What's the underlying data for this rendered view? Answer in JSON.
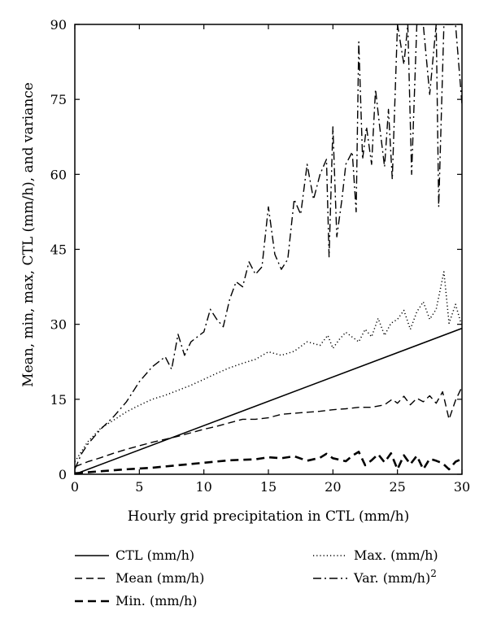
{
  "chart_data": {
    "type": "line",
    "xlabel": "Hourly grid precipitation in CTL (mm/h)",
    "ylabel": "Mean, min, max, CTL (mm/h), and variance",
    "xlim": [
      0,
      30
    ],
    "ylim": [
      0,
      90
    ],
    "xticks": [
      0,
      5,
      10,
      15,
      20,
      25,
      30
    ],
    "yticks": [
      0,
      15,
      30,
      45,
      60,
      75,
      90
    ],
    "grid": false,
    "legend_placement": "below",
    "series": [
      {
        "name": "CTL (mm/h)",
        "style": "solid",
        "points": [
          [
            0,
            0
          ],
          [
            30,
            29.2
          ]
        ]
      },
      {
        "name": "Mean (mm/h)",
        "style": "dashed",
        "points": [
          [
            0,
            1.5
          ],
          [
            1,
            2.5
          ],
          [
            2,
            3.3
          ],
          [
            3,
            4.2
          ],
          [
            4,
            5.0
          ],
          [
            5,
            5.7
          ],
          [
            6,
            6.4
          ],
          [
            7,
            7.0
          ],
          [
            8,
            7.6
          ],
          [
            9,
            8.3
          ],
          [
            10,
            9.0
          ],
          [
            11,
            9.6
          ],
          [
            12,
            10.3
          ],
          [
            13,
            11.0
          ],
          [
            14,
            11.0
          ],
          [
            15,
            11.3
          ],
          [
            16,
            12.0
          ],
          [
            17,
            12.2
          ],
          [
            18,
            12.4
          ],
          [
            19,
            12.6
          ],
          [
            20,
            12.9
          ],
          [
            21,
            13.1
          ],
          [
            22,
            13.4
          ],
          [
            23,
            13.4
          ],
          [
            24,
            13.9
          ],
          [
            24.6,
            15.0
          ],
          [
            25,
            14.2
          ],
          [
            25.5,
            15.6
          ],
          [
            26,
            13.9
          ],
          [
            26.5,
            15.2
          ],
          [
            27,
            14.5
          ],
          [
            27.5,
            15.7
          ],
          [
            28,
            14.2
          ],
          [
            28.5,
            16.5
          ],
          [
            29,
            11.0
          ],
          [
            29.5,
            14.8
          ],
          [
            30,
            17.5
          ]
        ]
      },
      {
        "name": "Min. (mm/h)",
        "style": "thick-dashed",
        "points": [
          [
            0,
            0.2
          ],
          [
            2,
            0.6
          ],
          [
            4,
            1.0
          ],
          [
            6,
            1.3
          ],
          [
            8,
            1.8
          ],
          [
            10,
            2.3
          ],
          [
            12,
            2.8
          ],
          [
            14,
            3.0
          ],
          [
            15,
            3.4
          ],
          [
            16,
            3.2
          ],
          [
            17,
            3.6
          ],
          [
            18,
            2.7
          ],
          [
            19,
            3.3
          ],
          [
            19.5,
            4.1
          ],
          [
            20,
            3.2
          ],
          [
            21,
            2.6
          ],
          [
            21.5,
            3.7
          ],
          [
            22,
            4.5
          ],
          [
            22.5,
            1.8
          ],
          [
            23,
            2.8
          ],
          [
            23.5,
            4.0
          ],
          [
            24,
            2.4
          ],
          [
            24.5,
            4.2
          ],
          [
            25,
            1.0
          ],
          [
            25.5,
            3.8
          ],
          [
            26,
            2.0
          ],
          [
            26.5,
            3.7
          ],
          [
            27,
            1.0
          ],
          [
            27.5,
            3.1
          ],
          [
            28,
            2.7
          ],
          [
            28.5,
            2.2
          ],
          [
            29,
            1.0
          ],
          [
            29.5,
            2.5
          ],
          [
            30,
            3.1
          ]
        ]
      },
      {
        "name": "Max. (mm/h)",
        "style": "dotted",
        "points": [
          [
            0,
            2.5
          ],
          [
            1,
            6.5
          ],
          [
            2,
            9.2
          ],
          [
            3,
            10.8
          ],
          [
            4,
            12.5
          ],
          [
            5,
            13.8
          ],
          [
            6,
            15.0
          ],
          [
            7,
            15.8
          ],
          [
            8,
            16.8
          ],
          [
            9,
            17.8
          ],
          [
            10,
            19.0
          ],
          [
            11,
            20.2
          ],
          [
            12,
            21.3
          ],
          [
            13,
            22.2
          ],
          [
            14,
            23.0
          ],
          [
            15,
            24.5
          ],
          [
            16,
            23.8
          ],
          [
            17,
            24.6
          ],
          [
            18,
            26.5
          ],
          [
            19,
            25.8
          ],
          [
            19.6,
            27.8
          ],
          [
            20,
            25.2
          ],
          [
            20.5,
            27.0
          ],
          [
            21,
            28.4
          ],
          [
            22,
            26.5
          ],
          [
            22.5,
            29.0
          ],
          [
            23,
            27.5
          ],
          [
            23.5,
            31.2
          ],
          [
            24,
            27.8
          ],
          [
            24.5,
            30.2
          ],
          [
            25,
            31.0
          ],
          [
            25.5,
            32.8
          ],
          [
            26,
            29.0
          ],
          [
            26.5,
            32.5
          ],
          [
            27,
            34.5
          ],
          [
            27.5,
            31.0
          ],
          [
            28,
            33.0
          ],
          [
            28.6,
            40.5
          ],
          [
            29,
            30.2
          ],
          [
            29.5,
            34.0
          ],
          [
            30,
            29.5
          ]
        ]
      },
      {
        "name": "Var. (mm/h)",
        "superscript": "2",
        "style": "dash-dot",
        "points": [
          [
            0,
            1.0
          ],
          [
            0.5,
            4.0
          ],
          [
            1,
            6.0
          ],
          [
            2,
            9.0
          ],
          [
            3,
            11.5
          ],
          [
            4,
            14.5
          ],
          [
            5,
            18.5
          ],
          [
            6,
            21.5
          ],
          [
            7,
            23.5
          ],
          [
            7.5,
            21.0
          ],
          [
            8,
            28.0
          ],
          [
            8.5,
            23.8
          ],
          [
            9,
            26.5
          ],
          [
            10,
            28.5
          ],
          [
            10.5,
            33.0
          ],
          [
            11,
            31.0
          ],
          [
            11.5,
            29.5
          ],
          [
            12,
            35.0
          ],
          [
            12.5,
            38.5
          ],
          [
            13,
            37.5
          ],
          [
            13.5,
            42.5
          ],
          [
            14,
            40.0
          ],
          [
            14.5,
            41.5
          ],
          [
            15,
            53.5
          ],
          [
            15.5,
            44.0
          ],
          [
            16,
            41.0
          ],
          [
            16.5,
            43.0
          ],
          [
            17,
            55.0
          ],
          [
            17.5,
            52.0
          ],
          [
            18,
            62.0
          ],
          [
            18.5,
            55.0
          ],
          [
            19,
            60.0
          ],
          [
            19.5,
            63.0
          ],
          [
            19.7,
            43.5
          ],
          [
            20,
            69.5
          ],
          [
            20.3,
            47.5
          ],
          [
            20.7,
            55.0
          ],
          [
            21,
            62.0
          ],
          [
            21.5,
            64.5
          ],
          [
            21.8,
            52.5
          ],
          [
            22,
            86.5
          ],
          [
            22.3,
            63.0
          ],
          [
            22.6,
            69.5
          ],
          [
            23,
            62.0
          ],
          [
            23.3,
            77.0
          ],
          [
            23.6,
            70.0
          ],
          [
            24,
            61.5
          ],
          [
            24.3,
            73.0
          ],
          [
            24.6,
            59.0
          ],
          [
            25,
            90.0
          ],
          [
            25.5,
            82.0
          ],
          [
            25.8,
            90.0
          ],
          [
            26.1,
            60.0
          ],
          [
            26.5,
            90.0
          ],
          [
            27,
            90.0
          ],
          [
            27.5,
            76.0
          ],
          [
            28,
            90.0
          ],
          [
            28.2,
            53.5
          ],
          [
            28.6,
            90.0
          ],
          [
            29,
            90.0
          ],
          [
            29.5,
            90.0
          ],
          [
            30,
            74.0
          ]
        ]
      }
    ]
  }
}
